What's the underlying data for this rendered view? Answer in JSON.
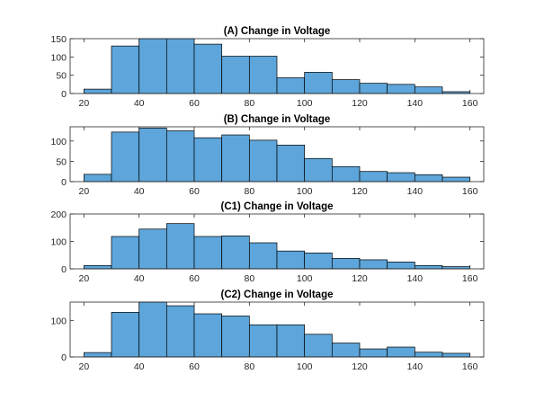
{
  "chart_data": [
    {
      "type": "bar",
      "title": "(A) Change in Voltage",
      "bin_edges": [
        20,
        30,
        40,
        50,
        60,
        70,
        80,
        90,
        100,
        110,
        120,
        130,
        140,
        150,
        160
      ],
      "values": [
        12,
        130,
        150,
        150,
        135,
        102,
        102,
        43,
        58,
        38,
        28,
        25,
        18,
        5
      ],
      "xlim": [
        15,
        165
      ],
      "ylim": [
        0,
        150
      ],
      "xticks": [
        20,
        40,
        60,
        80,
        100,
        120,
        140,
        160
      ],
      "yticks": [
        0,
        50,
        100,
        150
      ],
      "xlabel": "",
      "ylabel": "",
      "color": "#5DA5DA",
      "edgecolor": "#000000"
    },
    {
      "type": "bar",
      "title": "(B) Change in Voltage",
      "bin_edges": [
        20,
        30,
        40,
        50,
        60,
        70,
        80,
        90,
        100,
        110,
        120,
        130,
        140,
        150,
        160
      ],
      "values": [
        18,
        122,
        132,
        125,
        108,
        115,
        102,
        90,
        57,
        37,
        25,
        22,
        17,
        11
      ],
      "xlim": [
        15,
        165
      ],
      "ylim": [
        0,
        135
      ],
      "xticks": [
        20,
        40,
        60,
        80,
        100,
        120,
        140,
        160
      ],
      "yticks": [
        0,
        50,
        100
      ],
      "xlabel": "",
      "ylabel": "",
      "color": "#5DA5DA",
      "edgecolor": "#000000"
    },
    {
      "type": "bar",
      "title": "(C1) Change in Voltage",
      "bin_edges": [
        20,
        30,
        40,
        50,
        60,
        70,
        80,
        90,
        100,
        110,
        120,
        130,
        140,
        150,
        160
      ],
      "values": [
        12,
        118,
        145,
        165,
        118,
        120,
        95,
        65,
        58,
        38,
        33,
        25,
        12,
        8
      ],
      "xlim": [
        15,
        165
      ],
      "ylim": [
        0,
        200
      ],
      "xticks": [
        20,
        40,
        60,
        80,
        100,
        120,
        140,
        160
      ],
      "yticks": [
        0,
        100,
        200
      ],
      "xlabel": "",
      "ylabel": "",
      "color": "#5DA5DA",
      "edgecolor": "#000000"
    },
    {
      "type": "bar",
      "title": "(C2) Change in Voltage",
      "bin_edges": [
        20,
        30,
        40,
        50,
        60,
        70,
        80,
        90,
        100,
        110,
        120,
        130,
        140,
        150,
        160
      ],
      "values": [
        12,
        122,
        152,
        140,
        118,
        112,
        88,
        88,
        62,
        38,
        22,
        27,
        13,
        10
      ],
      "xlim": [
        15,
        165
      ],
      "ylim": [
        0,
        150
      ],
      "xticks": [
        20,
        40,
        60,
        80,
        100,
        120,
        140,
        160
      ],
      "yticks": [
        0,
        100
      ],
      "xlabel": "",
      "ylabel": "",
      "color": "#5DA5DA",
      "edgecolor": "#000000"
    }
  ]
}
